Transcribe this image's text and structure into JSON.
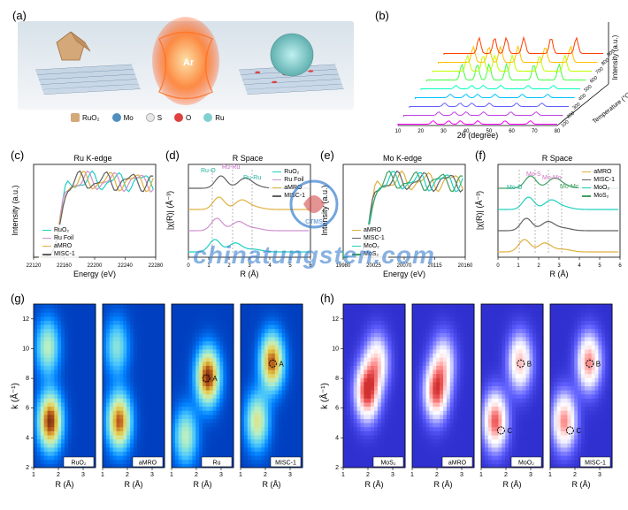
{
  "panels": {
    "a": {
      "label": "(a)"
    },
    "b": {
      "label": "(b)",
      "xlabel": "2θ (degree)",
      "ylabel": "Intensity (a.u.)",
      "zlabel": "Temperature (°C)",
      "x_ticks": [
        10,
        20,
        30,
        40,
        50,
        60,
        70,
        80
      ],
      "temperatures": [
        100,
        200,
        300,
        400,
        500,
        600,
        700,
        800,
        900
      ],
      "line_colors": [
        "#ff00ff",
        "#c040e0",
        "#6060ff",
        "#00c0ff",
        "#00ffc0",
        "#40ff40",
        "#c0ff00",
        "#ffc000",
        "#ff4000"
      ]
    },
    "c": {
      "label": "(c)",
      "title": "Ru K-edge",
      "xlabel": "Energy (eV)",
      "ylabel": "Intensity (a.u.)",
      "x_ticks": [
        22120,
        22160,
        22200,
        22240,
        22280
      ],
      "series": [
        {
          "name": "RuO₂",
          "color": "#20d0c0"
        },
        {
          "name": "Ru Foil",
          "color": "#d090d0"
        },
        {
          "name": "aMRO",
          "color": "#e0b040"
        },
        {
          "name": "MISC-1",
          "color": "#606060"
        }
      ]
    },
    "d": {
      "label": "(d)",
      "title": "R Space",
      "xlabel": "R (Å)",
      "ylabel": "|χ(R)| (Å⁻³)",
      "x_ticks": [
        0,
        1,
        2,
        3,
        4,
        5,
        6
      ],
      "series": [
        {
          "name": "RuO₂",
          "color": "#20d0c0"
        },
        {
          "name": "Ru Foil",
          "color": "#d090d0"
        },
        {
          "name": "aMRO",
          "color": "#e0b040"
        },
        {
          "name": "MISC-1",
          "color": "#606060"
        }
      ],
      "peaks": [
        {
          "label": "Ru-O",
          "color": "#20b0a0"
        },
        {
          "label": "Ru-Ru",
          "color": "#c060c0"
        },
        {
          "label": "Ru-Ru",
          "color": "#20b0a0"
        }
      ]
    },
    "e": {
      "label": "(e)",
      "title": "Mo K-edge",
      "xlabel": "Energy (eV)",
      "ylabel": "Intensity (a.u.)",
      "x_ticks": [
        19980,
        20025,
        20070,
        20115,
        20160
      ],
      "series": [
        {
          "name": "aMRO",
          "color": "#e0b040"
        },
        {
          "name": "MISC-1",
          "color": "#606060"
        },
        {
          "name": "MoO₂",
          "color": "#20d0c0"
        },
        {
          "name": "MoS₂",
          "color": "#40a060"
        }
      ]
    },
    "f": {
      "label": "(f)",
      "title": "R Space",
      "xlabel": "R (Å)",
      "ylabel": "|χ(R)| (Å⁻³)",
      "x_ticks": [
        0,
        1,
        2,
        3,
        4,
        5,
        6
      ],
      "series": [
        {
          "name": "aMRO",
          "color": "#e0b040"
        },
        {
          "name": "MISC-1",
          "color": "#606060"
        },
        {
          "name": "MoO₂",
          "color": "#20d0c0"
        },
        {
          "name": "MoS₂",
          "color": "#40a060"
        }
      ],
      "peaks": [
        {
          "label": "Mo-O",
          "color": "#20b0a0"
        },
        {
          "label": "Mo-S",
          "color": "#d070c0"
        },
        {
          "label": "Mo-Mo",
          "color": "#d070c0"
        },
        {
          "label": "Mo-Mo",
          "color": "#40a060"
        }
      ]
    },
    "g": {
      "label": "(g)",
      "xlabel": "R (Å)",
      "ylabel": "k (Å⁻¹)",
      "x_ticks": [
        1,
        2,
        3
      ],
      "y_ticks": [
        2,
        4,
        6,
        8,
        10,
        12
      ],
      "sub_labels": [
        "RuO₂",
        "aMRO",
        "Ru",
        "MISC-1"
      ],
      "markers": [
        "A",
        "A"
      ],
      "colormap": [
        "#0040c0",
        "#0080ff",
        "#40c0ff",
        "#80e0e0",
        "#c0f0c0",
        "#e0e080",
        "#e0c040",
        "#c06020",
        "#803010"
      ]
    },
    "h": {
      "label": "(h)",
      "xlabel": "R (Å)",
      "ylabel": "k (Å⁻¹)",
      "x_ticks": [
        1,
        2,
        3
      ],
      "y_ticks": [
        2,
        4,
        6,
        8,
        10,
        12
      ],
      "sub_labels": [
        "MoS₂",
        "aMRO",
        "MoO₂",
        "MISC-1"
      ],
      "markers": [
        "B",
        "C",
        "B",
        "C"
      ],
      "colormap": [
        "#3030d0",
        "#6060ff",
        "#a0a0ff",
        "#e0e0ff",
        "#ffffff",
        "#ffe0e0",
        "#ffa0a0",
        "#f06060",
        "#d03030"
      ]
    }
  },
  "schematic": {
    "species": [
      {
        "label": "RuO₂",
        "color": "#d4a878"
      },
      {
        "label": "Mo",
        "color": "#5090c0"
      },
      {
        "label": "S",
        "color": "#e8e8e8"
      },
      {
        "label": "O",
        "color": "#e04040"
      },
      {
        "label": "Ru",
        "color": "#80d0d0"
      }
    ],
    "plasma_label": "Ar"
  },
  "watermark": "chinatungsten.com",
  "colors": {
    "axis": "#000000",
    "bg": "#ffffff"
  }
}
